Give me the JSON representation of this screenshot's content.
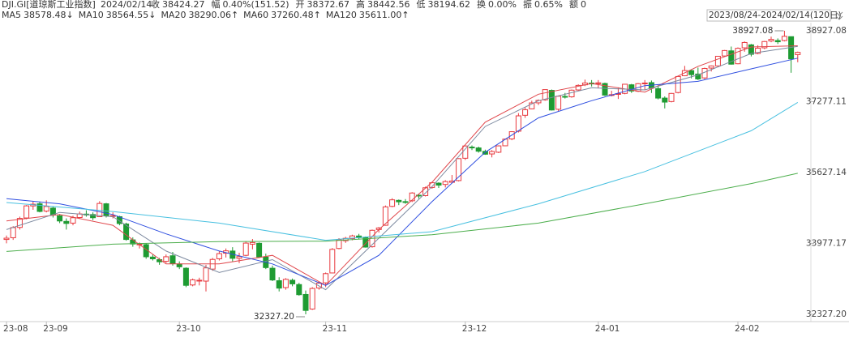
{
  "header": {
    "symbol": "DJI.GI[道琼斯工业指数]",
    "date": "2024/02/14",
    "items": [
      {
        "label": "收",
        "value": "38424.27"
      },
      {
        "label": "幅",
        "value": "0.40%(151.52)"
      },
      {
        "label": "开",
        "value": "38372.67"
      },
      {
        "label": "高",
        "value": "38442.56"
      },
      {
        "label": "低",
        "value": "38194.62"
      },
      {
        "label": "换",
        "value": "0.00%"
      },
      {
        "label": "振",
        "value": "0.65%"
      },
      {
        "label": "额",
        "value": "0"
      }
    ],
    "range": "2023/08/24-2024/02/14(120日)"
  },
  "chart_data": {
    "type": "candlestick",
    "up_color": "#e8393e",
    "down_color": "#1e9b32",
    "ylim": [
      32327.2,
      38927.08
    ],
    "yticks": [
      {
        "value": 32327.2,
        "label": "32327.20"
      },
      33977.17,
      35627.14,
      37277.11,
      38927.08
    ],
    "categories": [
      "23-08",
      null,
      null,
      null,
      null,
      null,
      "23-09",
      null,
      null,
      null,
      null,
      null,
      null,
      null,
      null,
      null,
      null,
      null,
      null,
      null,
      null,
      null,
      null,
      null,
      null,
      null,
      "23-10",
      null,
      null,
      null,
      null,
      null,
      null,
      null,
      null,
      null,
      null,
      null,
      null,
      null,
      null,
      null,
      null,
      null,
      null,
      null,
      null,
      null,
      "23-11",
      null,
      null,
      null,
      null,
      null,
      null,
      null,
      null,
      null,
      null,
      null,
      null,
      null,
      null,
      null,
      null,
      null,
      null,
      null,
      null,
      "23-12",
      null,
      null,
      null,
      null,
      null,
      null,
      null,
      null,
      null,
      null,
      null,
      null,
      null,
      null,
      null,
      null,
      null,
      null,
      null,
      "24-01",
      null,
      null,
      null,
      null,
      null,
      null,
      null,
      null,
      null,
      null,
      null,
      null,
      null,
      null,
      null,
      null,
      null,
      null,
      null,
      null,
      "24-02",
      null,
      null,
      null,
      null,
      null,
      null,
      null,
      null,
      null
    ],
    "ohlc": [
      [
        34070,
        34160,
        33980,
        34099
      ],
      [
        34110,
        34380,
        34060,
        34346
      ],
      [
        34350,
        34600,
        34300,
        34559
      ],
      [
        34570,
        34870,
        34540,
        34852
      ],
      [
        34850,
        34950,
        34760,
        34890
      ],
      [
        34900,
        34950,
        34700,
        34722
      ],
      [
        34730,
        34980,
        34700,
        34837
      ],
      [
        34800,
        34830,
        34580,
        34641
      ],
      [
        34620,
        34660,
        34450,
        34500
      ],
      [
        34490,
        34560,
        34300,
        34443
      ],
      [
        34450,
        34620,
        34400,
        34576
      ],
      [
        34580,
        34720,
        34550,
        34664
      ],
      [
        34660,
        34750,
        34600,
        34646
      ],
      [
        34650,
        34700,
        34520,
        34576
      ],
      [
        34600,
        34960,
        34590,
        34908
      ],
      [
        34900,
        34920,
        34580,
        34618
      ],
      [
        34620,
        34700,
        34560,
        34625
      ],
      [
        34600,
        34620,
        34400,
        34441
      ],
      [
        34430,
        34460,
        34040,
        34070
      ],
      [
        34060,
        34120,
        33900,
        33964
      ],
      [
        33960,
        34000,
        33860,
        33963
      ],
      [
        33950,
        33980,
        33620,
        33667
      ],
      [
        33660,
        33720,
        33580,
        33619
      ],
      [
        33600,
        33640,
        33480,
        33550
      ],
      [
        33560,
        33720,
        33520,
        33667
      ],
      [
        33690,
        33780,
        33460,
        33507
      ],
      [
        33500,
        33560,
        33380,
        33433
      ],
      [
        33400,
        33420,
        32960,
        33002
      ],
      [
        33010,
        33160,
        32980,
        33130
      ],
      [
        33120,
        33180,
        33000,
        33120
      ],
      [
        33100,
        33480,
        32860,
        33408
      ],
      [
        33380,
        33640,
        33340,
        33605
      ],
      [
        33620,
        33800,
        33580,
        33740
      ],
      [
        33750,
        33860,
        33650,
        33805
      ],
      [
        33800,
        33890,
        33560,
        33631
      ],
      [
        33630,
        33760,
        33520,
        33671
      ],
      [
        33700,
        34030,
        33680,
        33985
      ],
      [
        33960,
        34080,
        33840,
        33998
      ],
      [
        33980,
        34000,
        33640,
        33665
      ],
      [
        33660,
        33740,
        33380,
        33415
      ],
      [
        33400,
        33460,
        33100,
        33127
      ],
      [
        33110,
        33190,
        32860,
        32937
      ],
      [
        32950,
        33170,
        32900,
        33141
      ],
      [
        33120,
        33160,
        32980,
        33036
      ],
      [
        33020,
        33060,
        32760,
        32785
      ],
      [
        32790,
        32880,
        32327.2,
        32418
      ],
      [
        32450,
        32960,
        32430,
        32929
      ],
      [
        32940,
        33080,
        32900,
        33053
      ],
      [
        33060,
        33300,
        32960,
        33274
      ],
      [
        33290,
        33870,
        33280,
        33839
      ],
      [
        33860,
        34100,
        33840,
        34061
      ],
      [
        34040,
        34130,
        33990,
        34096
      ],
      [
        34090,
        34180,
        34050,
        34153
      ],
      [
        34150,
        34200,
        34070,
        34112
      ],
      [
        34120,
        34140,
        33880,
        33892
      ],
      [
        33900,
        34300,
        33880,
        34283
      ],
      [
        34300,
        34360,
        34230,
        34337
      ],
      [
        34400,
        34860,
        34390,
        34828
      ],
      [
        34840,
        35030,
        34820,
        34992
      ],
      [
        34980,
        35000,
        34870,
        34946
      ],
      [
        34950,
        35010,
        34900,
        34947
      ],
      [
        34970,
        35170,
        34940,
        35151
      ],
      [
        35100,
        35120,
        35020,
        35088
      ],
      [
        35090,
        35300,
        35070,
        35273
      ],
      [
        35280,
        35410,
        35250,
        35390
      ],
      [
        35380,
        35400,
        35270,
        35334
      ],
      [
        35350,
        35450,
        35280,
        35417
      ],
      [
        35400,
        35570,
        35380,
        35430
      ],
      [
        35440,
        35960,
        35420,
        35951
      ],
      [
        35960,
        36260,
        35920,
        36246
      ],
      [
        36220,
        36260,
        36150,
        36204
      ],
      [
        36200,
        36230,
        36090,
        36124
      ],
      [
        36120,
        36160,
        36040,
        36054
      ],
      [
        36060,
        36150,
        35980,
        36117
      ],
      [
        36100,
        36260,
        36080,
        36248
      ],
      [
        36250,
        36420,
        36240,
        36405
      ],
      [
        36410,
        36590,
        36380,
        36578
      ],
      [
        36590,
        37010,
        36560,
        36947
      ],
      [
        36960,
        37150,
        36900,
        37090
      ],
      [
        37110,
        37300,
        37100,
        37248
      ],
      [
        37250,
        37330,
        37200,
        37306
      ],
      [
        37320,
        37560,
        37300,
        37558
      ],
      [
        37540,
        37560,
        37070,
        37083
      ],
      [
        37100,
        37420,
        37060,
        37404
      ],
      [
        37400,
        37480,
        37350,
        37385
      ],
      [
        37390,
        37560,
        37370,
        37545
      ],
      [
        37550,
        37680,
        37530,
        37656
      ],
      [
        37670,
        37790,
        37640,
        37711
      ],
      [
        37710,
        37780,
        37630,
        37690
      ],
      [
        37700,
        37780,
        37590,
        37715
      ],
      [
        37700,
        37720,
        37410,
        37430
      ],
      [
        37440,
        37530,
        37400,
        37440
      ],
      [
        37450,
        37610,
        37340,
        37466
      ],
      [
        37470,
        37690,
        37450,
        37683
      ],
      [
        37670,
        37690,
        37480,
        37525
      ],
      [
        37520,
        37710,
        37500,
        37696
      ],
      [
        37700,
        37780,
        37560,
        37711
      ],
      [
        37720,
        37770,
        37480,
        37593
      ],
      [
        37580,
        37650,
        37330,
        37361
      ],
      [
        37360,
        37400,
        37120,
        37267
      ],
      [
        37280,
        37480,
        37260,
        37469
      ],
      [
        37490,
        37880,
        37470,
        37863
      ],
      [
        37880,
        38110,
        37870,
        38001
      ],
      [
        38000,
        38020,
        37820,
        37906
      ],
      [
        37920,
        38070,
        37780,
        37806
      ],
      [
        37830,
        38070,
        37800,
        38050
      ],
      [
        38060,
        38120,
        37980,
        38109
      ],
      [
        38110,
        38340,
        38090,
        38334
      ],
      [
        38340,
        38480,
        38330,
        38467
      ],
      [
        38460,
        38560,
        38140,
        38150
      ],
      [
        38160,
        38540,
        38150,
        38520
      ],
      [
        38530,
        38680,
        38440,
        38654
      ],
      [
        38600,
        38620,
        38330,
        38380
      ],
      [
        38400,
        38590,
        38380,
        38522
      ],
      [
        38530,
        38690,
        38500,
        38677
      ],
      [
        38690,
        38790,
        38660,
        38727
      ],
      [
        38700,
        38750,
        38620,
        38671
      ],
      [
        38700,
        38927.08,
        38680,
        38798
      ],
      [
        38790,
        38790,
        37950,
        38273
      ],
      [
        38372.67,
        38442.56,
        38194.62,
        38424.27
      ]
    ],
    "series": [
      {
        "name": "MA5",
        "label": "38578.48↓",
        "color": "#e0464b",
        "x": [
          0,
          8,
          16,
          24,
          32,
          40,
          48,
          56,
          64,
          72,
          80,
          88,
          96,
          104,
          112,
          119
        ],
        "values": [
          34500,
          34650,
          34400,
          33500,
          33500,
          33700,
          33000,
          34300,
          35400,
          36800,
          37450,
          37700,
          37500,
          38100,
          38550,
          38578.48
        ]
      },
      {
        "name": "MA10",
        "label": "38564.55↓",
        "color": "#7d8aa0",
        "x": [
          0,
          8,
          16,
          24,
          32,
          40,
          48,
          56,
          64,
          72,
          80,
          88,
          96,
          104,
          112,
          119
        ],
        "values": [
          34300,
          34700,
          34600,
          33800,
          33300,
          33600,
          32900,
          34100,
          35300,
          36700,
          37300,
          37600,
          37550,
          37900,
          38400,
          38564.55
        ]
      },
      {
        "name": "MA20",
        "label": "38290.06↑",
        "color": "#2f4fe0",
        "x": [
          0,
          8,
          16,
          24,
          32,
          40,
          48,
          56,
          64,
          72,
          80,
          88,
          96,
          104,
          112,
          119
        ],
        "values": [
          35020,
          34900,
          34650,
          34200,
          33800,
          33500,
          33000,
          33700,
          34950,
          36100,
          36900,
          37300,
          37650,
          37750,
          38040,
          38290.06
        ]
      },
      {
        "name": "MA60",
        "label": "37260.48↑",
        "color": "#48c0e0",
        "x": [
          0,
          16,
          32,
          48,
          64,
          80,
          96,
          112,
          119
        ],
        "values": [
          34930,
          34720,
          34450,
          34050,
          34250,
          34900,
          35650,
          36600,
          37260.48
        ]
      },
      {
        "name": "MA120",
        "label": "35611.00↑",
        "color": "#4cae4c",
        "x": [
          0,
          16,
          32,
          48,
          64,
          80,
          96,
          112,
          119
        ],
        "values": [
          33790,
          33960,
          34020,
          34030,
          34180,
          34450,
          34900,
          35370,
          35611.0
        ]
      }
    ],
    "annotations": [
      {
        "label": "38927.08",
        "value": 38927.08,
        "kind": "high"
      },
      {
        "label": "32327.20",
        "value": 32327.2,
        "kind": "low"
      }
    ]
  }
}
